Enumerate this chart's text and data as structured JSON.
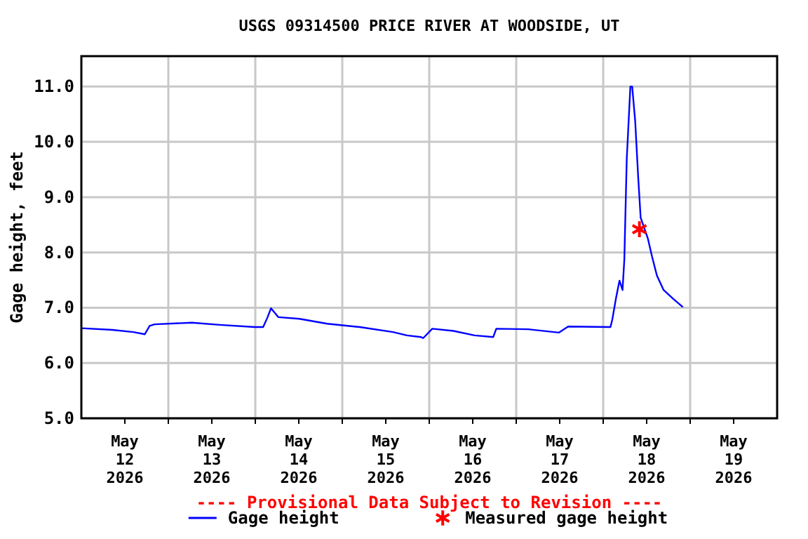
{
  "chart_data": {
    "type": "line",
    "title": "USGS 09314500 PRICE RIVER AT WOODSIDE, UT",
    "ylabel": "Gage height, feet",
    "annotations": [
      "---- Provisional Data Subject to Revision ----"
    ],
    "xlim": [
      "2026-05-12T00:00",
      "2026-05-20T00:00"
    ],
    "xticks": [
      {
        "value": "2026-05-12T12:00",
        "label": "May\n12\n2026"
      },
      {
        "value": "2026-05-13T12:00",
        "label": "May\n13\n2026"
      },
      {
        "value": "2026-05-14T12:00",
        "label": "May\n14\n2026"
      },
      {
        "value": "2026-05-15T12:00",
        "label": "May\n15\n2026"
      },
      {
        "value": "2026-05-16T12:00",
        "label": "May\n16\n2026"
      },
      {
        "value": "2026-05-17T12:00",
        "label": "May\n17\n2026"
      },
      {
        "value": "2026-05-18T12:00",
        "label": "May\n18\n2026"
      },
      {
        "value": "2026-05-19T12:00",
        "label": "May\n19\n2026"
      },
      {
        "value": "2026-05-13T00:00",
        "label": null
      },
      {
        "value": "2026-05-14T00:00",
        "label": null
      },
      {
        "value": "2026-05-15T00:00",
        "label": null
      },
      {
        "value": "2026-05-16T00:00",
        "label": null
      },
      {
        "value": "2026-05-17T00:00",
        "label": null
      },
      {
        "value": "2026-05-18T00:00",
        "label": null
      },
      {
        "value": "2026-05-19T00:00",
        "label": null
      }
    ],
    "ylim": [
      5,
      11.55
    ],
    "yticks": [
      {
        "value": 5,
        "label": "5.0"
      },
      {
        "value": 6,
        "label": "6.0"
      },
      {
        "value": 7,
        "label": "7.0"
      },
      {
        "value": 8,
        "label": "8.0"
      },
      {
        "value": 9,
        "label": "9.0"
      },
      {
        "value": 10,
        "label": "10.0"
      },
      {
        "value": 11,
        "label": "11.0"
      }
    ],
    "grid": true,
    "legend": "bottom",
    "series": [
      {
        "name": "Gage height",
        "type": "line",
        "color": "#0000ff",
        "marker": "none",
        "line_style": "solid",
        "x": [
          "2026-05-12T00:00",
          "2026-05-12T08:30",
          "2026-05-12T14:20",
          "2026-05-12T17:30",
          "2026-05-12T18:50",
          "2026-05-12T20:10",
          "2026-05-13T06:30",
          "2026-05-13T14:10",
          "2026-05-13T23:50",
          "2026-05-14T02:10",
          "2026-05-14T03:20",
          "2026-05-14T04:20",
          "2026-05-14T06:20",
          "2026-05-14T12:10",
          "2026-05-14T19:50",
          "2026-05-15T04:50",
          "2026-05-15T14:00",
          "2026-05-15T17:50",
          "2026-05-15T21:40",
          "2026-05-15T22:20",
          "2026-05-16T00:50",
          "2026-05-16T06:40",
          "2026-05-16T12:30",
          "2026-05-16T17:40",
          "2026-05-16T18:30",
          "2026-05-17T03:20",
          "2026-05-17T11:45",
          "2026-05-17T14:20",
          "2026-05-18T02:00",
          "2026-05-18T02:30",
          "2026-05-18T03:30",
          "2026-05-18T04:30",
          "2026-05-18T05:20",
          "2026-05-18T05:50",
          "2026-05-18T06:30",
          "2026-05-18T07:30",
          "2026-05-18T08:00",
          "2026-05-18T08:50",
          "2026-05-18T09:40",
          "2026-05-18T10:20",
          "2026-05-18T12:20",
          "2026-05-18T13:30",
          "2026-05-18T14:50",
          "2026-05-18T16:40",
          "2026-05-18T19:20",
          "2026-05-18T22:00"
        ],
        "values": [
          6.63,
          6.6,
          6.56,
          6.52,
          6.67,
          6.7,
          6.73,
          6.69,
          6.65,
          6.65,
          6.82,
          6.99,
          6.83,
          6.8,
          6.71,
          6.65,
          6.56,
          6.5,
          6.47,
          6.45,
          6.62,
          6.58,
          6.5,
          6.47,
          6.62,
          6.61,
          6.55,
          6.66,
          6.65,
          6.78,
          7.16,
          7.49,
          7.32,
          7.87,
          9.69,
          11.0,
          11.0,
          10.37,
          9.35,
          8.63,
          8.25,
          7.92,
          7.58,
          7.32,
          7.16,
          7.01
        ]
      },
      {
        "name": "Measured gage height",
        "type": "scatter",
        "color": "#ff0000",
        "marker": "cross",
        "x": [
          "2026-05-18T10:00"
        ],
        "values": [
          8.42
        ]
      }
    ]
  }
}
